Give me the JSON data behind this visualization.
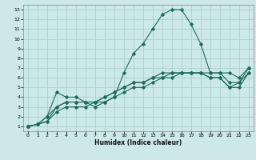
{
  "xlabel": "Humidex (Indice chaleur)",
  "bg_color": "#cce8e8",
  "grid_color": "#aacfcf",
  "line_color": "#1a6b5e",
  "xlim": [
    -0.5,
    23.5
  ],
  "ylim": [
    0.5,
    13.5
  ],
  "xticks": [
    0,
    1,
    2,
    3,
    4,
    5,
    6,
    7,
    8,
    9,
    10,
    11,
    12,
    13,
    14,
    15,
    16,
    17,
    18,
    19,
    20,
    21,
    22,
    23
  ],
  "yticks": [
    1,
    2,
    3,
    4,
    5,
    6,
    7,
    8,
    9,
    10,
    11,
    12,
    13
  ],
  "line1_x": [
    0,
    1,
    2,
    3,
    4,
    5,
    6,
    7,
    8,
    9,
    10,
    11,
    12,
    13,
    14,
    15,
    16,
    17,
    18,
    19,
    20,
    21,
    22,
    23
  ],
  "line1_y": [
    1,
    1.2,
    2,
    4.5,
    4,
    4,
    3.5,
    3,
    3.5,
    4,
    6.5,
    8.5,
    9.5,
    11,
    12.5,
    13,
    13,
    11.5,
    9.5,
    6.5,
    6.5,
    6.5,
    6,
    7
  ],
  "line2_x": [
    0,
    1,
    2,
    3,
    4,
    5,
    6,
    7,
    8,
    9,
    10,
    11,
    12,
    13,
    14,
    15,
    16,
    17,
    18,
    19,
    20,
    21,
    22,
    23
  ],
  "line2_y": [
    1,
    1.2,
    2,
    3,
    3.5,
    3.5,
    3.5,
    3.5,
    4,
    4.5,
    5,
    5.5,
    5.5,
    6,
    6,
    6,
    6.5,
    6.5,
    6.5,
    6.5,
    6.5,
    5.5,
    5.5,
    7
  ],
  "line3_x": [
    0,
    1,
    2,
    3,
    4,
    5,
    6,
    7,
    8,
    9,
    10,
    11,
    12,
    13,
    14,
    15,
    16,
    17,
    18,
    19,
    20,
    21,
    22,
    23
  ],
  "line3_y": [
    1,
    1.2,
    1.5,
    3,
    3.5,
    3.5,
    3.5,
    3.5,
    4,
    4.5,
    5,
    5.5,
    5.5,
    6,
    6.5,
    6.5,
    6.5,
    6.5,
    6.5,
    6,
    6,
    5,
    5.5,
    6.5
  ],
  "line4_x": [
    0,
    1,
    2,
    3,
    4,
    5,
    6,
    7,
    8,
    9,
    10,
    11,
    12,
    13,
    14,
    15,
    16,
    17,
    18,
    19,
    20,
    21,
    22,
    23
  ],
  "line4_y": [
    1,
    1.2,
    1.5,
    2.5,
    3,
    3,
    3,
    3.5,
    3.5,
    4,
    4.5,
    5,
    5,
    5.5,
    6,
    6.5,
    6.5,
    6.5,
    6.5,
    6,
    6,
    5,
    5,
    6.5
  ]
}
